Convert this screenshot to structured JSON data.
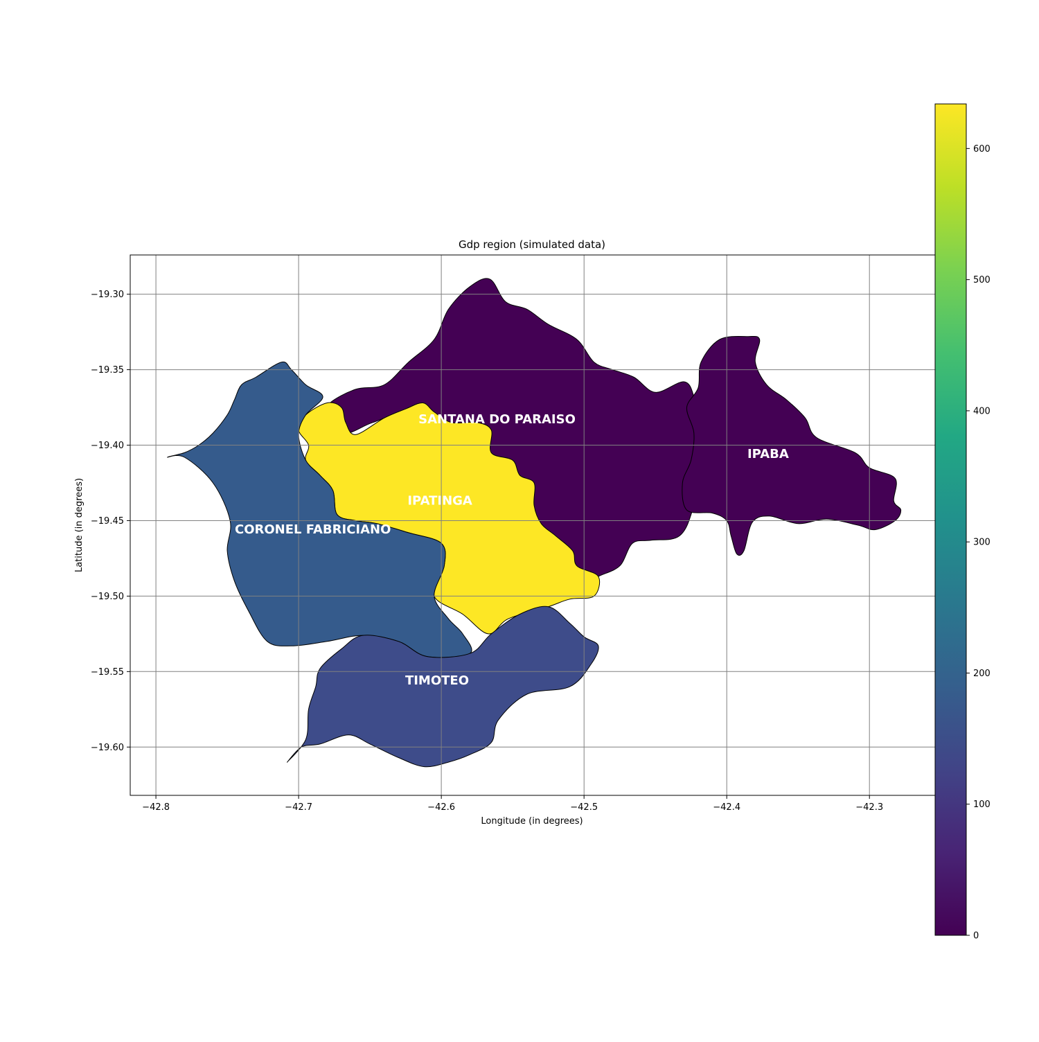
{
  "chart_data": {
    "type": "choropleth",
    "title": "Gdp region (simulated data)",
    "xlabel": "Longitude (in degrees)",
    "ylabel": "Latitude (in degrees)",
    "xlim": [
      -42.818,
      -42.254
    ],
    "ylim": [
      -19.632,
      -19.274
    ],
    "xticks": [
      -42.8,
      -42.7,
      -42.6,
      -42.5,
      -42.4,
      -42.3
    ],
    "xtick_labels": [
      "−42.8",
      "−42.7",
      "−42.6",
      "−42.5",
      "−42.4",
      "−42.3"
    ],
    "yticks": [
      -19.3,
      -19.35,
      -19.4,
      -19.45,
      -19.5,
      -19.55,
      -19.6
    ],
    "ytick_labels": [
      "−19.30",
      "−19.35",
      "−19.40",
      "−19.45",
      "−19.50",
      "−19.55",
      "−19.60"
    ],
    "grid": true,
    "colormap": "viridis",
    "colorbar": {
      "min": 0,
      "max": 634,
      "ticks": [
        0,
        100,
        200,
        300,
        400,
        500,
        600
      ],
      "tick_labels": [
        "0",
        "100",
        "200",
        "300",
        "400",
        "500",
        "600"
      ]
    },
    "regions": [
      {
        "name": "SANTANA DO PARAISO",
        "value": 0,
        "color": "#440154",
        "label_pos": [
          -42.561,
          -19.383
        ],
        "outline": [
          [
            -42.675,
            -19.39
          ],
          [
            -42.683,
            -19.382
          ],
          [
            -42.678,
            -19.372
          ],
          [
            -42.66,
            -19.363
          ],
          [
            -42.64,
            -19.36
          ],
          [
            -42.623,
            -19.345
          ],
          [
            -42.605,
            -19.33
          ],
          [
            -42.595,
            -19.31
          ],
          [
            -42.58,
            -19.295
          ],
          [
            -42.566,
            -19.29
          ],
          [
            -42.555,
            -19.305
          ],
          [
            -42.54,
            -19.31
          ],
          [
            -42.525,
            -19.32
          ],
          [
            -42.505,
            -19.33
          ],
          [
            -42.493,
            -19.345
          ],
          [
            -42.48,
            -19.35
          ],
          [
            -42.465,
            -19.355
          ],
          [
            -42.45,
            -19.365
          ],
          [
            -42.43,
            -19.358
          ],
          [
            -42.423,
            -19.368
          ],
          [
            -42.421,
            -19.385
          ],
          [
            -42.413,
            -19.4
          ],
          [
            -42.423,
            -19.44
          ],
          [
            -42.433,
            -19.46
          ],
          [
            -42.453,
            -19.463
          ],
          [
            -42.466,
            -19.465
          ],
          [
            -42.475,
            -19.48
          ],
          [
            -42.49,
            -19.487
          ],
          [
            -42.5,
            -19.493
          ],
          [
            -42.513,
            -19.49
          ],
          [
            -42.53,
            -19.475
          ],
          [
            -42.547,
            -19.467
          ],
          [
            -42.565,
            -19.455
          ],
          [
            -42.585,
            -19.442
          ],
          [
            -42.595,
            -19.415
          ],
          [
            -42.605,
            -19.4
          ],
          [
            -42.625,
            -19.38
          ],
          [
            -42.648,
            -19.385
          ],
          [
            -42.665,
            -19.392
          ]
        ]
      },
      {
        "name": "IPABA",
        "value": 0,
        "color": "#440154",
        "label_pos": [
          -42.371,
          -19.406
        ],
        "outline": [
          [
            -42.42,
            -19.362
          ],
          [
            -42.418,
            -19.345
          ],
          [
            -42.405,
            -19.33
          ],
          [
            -42.385,
            -19.328
          ],
          [
            -42.377,
            -19.33
          ],
          [
            -42.38,
            -19.345
          ],
          [
            -42.372,
            -19.36
          ],
          [
            -42.358,
            -19.37
          ],
          [
            -42.345,
            -19.382
          ],
          [
            -42.337,
            -19.395
          ],
          [
            -42.31,
            -19.405
          ],
          [
            -42.3,
            -19.415
          ],
          [
            -42.282,
            -19.422
          ],
          [
            -42.283,
            -19.437
          ],
          [
            -42.278,
            -19.443
          ],
          [
            -42.282,
            -19.45
          ],
          [
            -42.296,
            -19.456
          ],
          [
            -42.308,
            -19.453
          ],
          [
            -42.33,
            -19.449
          ],
          [
            -42.35,
            -19.452
          ],
          [
            -42.37,
            -19.447
          ],
          [
            -42.382,
            -19.451
          ],
          [
            -42.388,
            -19.47
          ],
          [
            -42.393,
            -19.472
          ],
          [
            -42.397,
            -19.46
          ],
          [
            -42.4,
            -19.45
          ],
          [
            -42.41,
            -19.445
          ],
          [
            -42.428,
            -19.443
          ],
          [
            -42.431,
            -19.425
          ],
          [
            -42.425,
            -19.41
          ],
          [
            -42.423,
            -19.392
          ],
          [
            -42.428,
            -19.375
          ]
        ]
      },
      {
        "name": "IPATINGA",
        "value": 634,
        "color": "#fde725",
        "label_pos": [
          -42.601,
          -19.437
        ],
        "outline": [
          [
            -42.7,
            -19.39
          ],
          [
            -42.695,
            -19.38
          ],
          [
            -42.68,
            -19.372
          ],
          [
            -42.67,
            -19.375
          ],
          [
            -42.667,
            -19.385
          ],
          [
            -42.66,
            -19.393
          ],
          [
            -42.64,
            -19.382
          ],
          [
            -42.625,
            -19.376
          ],
          [
            -42.613,
            -19.372
          ],
          [
            -42.605,
            -19.378
          ],
          [
            -42.593,
            -19.385
          ],
          [
            -42.575,
            -19.385
          ],
          [
            -42.565,
            -19.39
          ],
          [
            -42.565,
            -19.405
          ],
          [
            -42.55,
            -19.41
          ],
          [
            -42.545,
            -19.42
          ],
          [
            -42.535,
            -19.425
          ],
          [
            -42.535,
            -19.44
          ],
          [
            -42.53,
            -19.452
          ],
          [
            -42.52,
            -19.46
          ],
          [
            -42.508,
            -19.47
          ],
          [
            -42.505,
            -19.48
          ],
          [
            -42.49,
            -19.487
          ],
          [
            -42.493,
            -19.5
          ],
          [
            -42.51,
            -19.502
          ],
          [
            -42.525,
            -19.507
          ],
          [
            -42.553,
            -19.515
          ],
          [
            -42.567,
            -19.525
          ],
          [
            -42.585,
            -19.512
          ],
          [
            -42.605,
            -19.5
          ],
          [
            -42.598,
            -19.48
          ],
          [
            -42.6,
            -19.465
          ],
          [
            -42.623,
            -19.458
          ],
          [
            -42.645,
            -19.452
          ],
          [
            -42.66,
            -19.45
          ],
          [
            -42.673,
            -19.446
          ],
          [
            -42.676,
            -19.43
          ],
          [
            -42.685,
            -19.42
          ],
          [
            -42.695,
            -19.41
          ],
          [
            -42.693,
            -19.4
          ]
        ]
      },
      {
        "name": "CORONEL FABRICIANO",
        "value": 178,
        "color": "#355b8c",
        "label_pos": [
          -42.69,
          -19.456
        ],
        "outline": [
          [
            -42.792,
            -19.408
          ],
          [
            -42.78,
            -19.405
          ],
          [
            -42.77,
            -19.4
          ],
          [
            -42.76,
            -19.392
          ],
          [
            -42.75,
            -19.38
          ],
          [
            -42.745,
            -19.37
          ],
          [
            -42.74,
            -19.36
          ],
          [
            -42.73,
            -19.355
          ],
          [
            -42.712,
            -19.345
          ],
          [
            -42.705,
            -19.35
          ],
          [
            -42.695,
            -19.36
          ],
          [
            -42.683,
            -19.368
          ],
          [
            -42.695,
            -19.38
          ],
          [
            -42.7,
            -19.393
          ],
          [
            -42.695,
            -19.41
          ],
          [
            -42.685,
            -19.42
          ],
          [
            -42.676,
            -19.43
          ],
          [
            -42.673,
            -19.446
          ],
          [
            -42.66,
            -19.45
          ],
          [
            -42.645,
            -19.452
          ],
          [
            -42.623,
            -19.458
          ],
          [
            -42.6,
            -19.465
          ],
          [
            -42.598,
            -19.48
          ],
          [
            -42.605,
            -19.5
          ],
          [
            -42.595,
            -19.515
          ],
          [
            -42.585,
            -19.525
          ],
          [
            -42.58,
            -19.538
          ],
          [
            -42.61,
            -19.54
          ],
          [
            -42.63,
            -19.53
          ],
          [
            -42.655,
            -19.526
          ],
          [
            -42.68,
            -19.53
          ],
          [
            -42.705,
            -19.533
          ],
          [
            -42.722,
            -19.53
          ],
          [
            -42.735,
            -19.51
          ],
          [
            -42.745,
            -19.49
          ],
          [
            -42.75,
            -19.47
          ],
          [
            -42.748,
            -19.45
          ],
          [
            -42.76,
            -19.425
          ],
          [
            -42.78,
            -19.408
          ]
        ]
      },
      {
        "name": "TIMOTEO",
        "value": 118,
        "color": "#3e4c8a",
        "label_pos": [
          -42.603,
          -19.556
        ],
        "outline": [
          [
            -42.67,
            -19.535
          ],
          [
            -42.655,
            -19.526
          ],
          [
            -42.63,
            -19.53
          ],
          [
            -42.61,
            -19.54
          ],
          [
            -42.58,
            -19.538
          ],
          [
            -42.565,
            -19.525
          ],
          [
            -42.545,
            -19.512
          ],
          [
            -42.525,
            -19.507
          ],
          [
            -42.51,
            -19.518
          ],
          [
            -42.5,
            -19.527
          ],
          [
            -42.49,
            -19.533
          ],
          [
            -42.495,
            -19.545
          ],
          [
            -42.51,
            -19.56
          ],
          [
            -42.54,
            -19.565
          ],
          [
            -42.56,
            -19.582
          ],
          [
            -42.565,
            -19.597
          ],
          [
            -42.58,
            -19.605
          ],
          [
            -42.595,
            -19.61
          ],
          [
            -42.612,
            -19.613
          ],
          [
            -42.63,
            -19.607
          ],
          [
            -42.65,
            -19.598
          ],
          [
            -42.665,
            -19.592
          ],
          [
            -42.685,
            -19.598
          ],
          [
            -42.698,
            -19.6
          ],
          [
            -42.708,
            -19.61
          ],
          [
            -42.695,
            -19.595
          ],
          [
            -42.693,
            -19.575
          ],
          [
            -42.688,
            -19.56
          ],
          [
            -42.685,
            -19.548
          ]
        ]
      }
    ]
  }
}
